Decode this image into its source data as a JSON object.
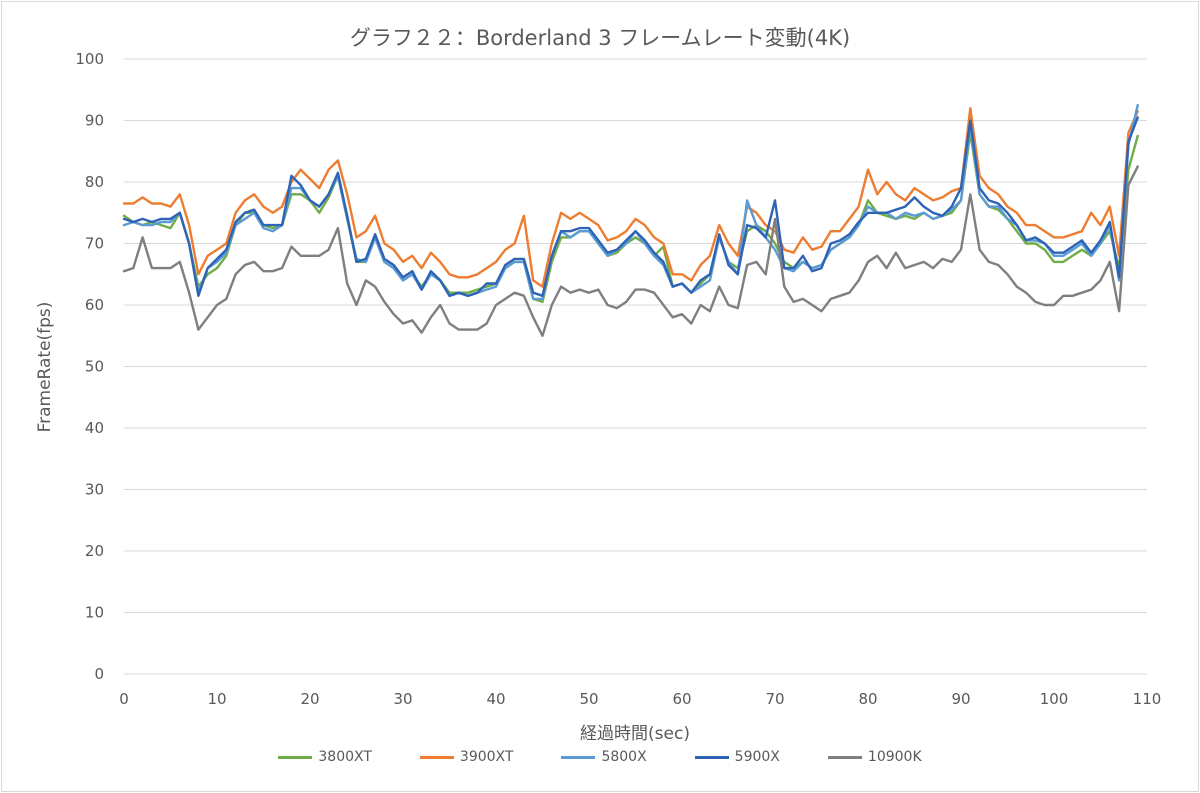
{
  "chart_data": {
    "type": "line",
    "title": "グラフ２２：Borderland 3 フレームレート変動(4K)",
    "xlabel": "経過時間(sec)",
    "ylabel": "FrameRate(fps)",
    "xlim": [
      0,
      110
    ],
    "ylim": [
      0,
      100
    ],
    "xticks": [
      0,
      10,
      20,
      30,
      40,
      50,
      60,
      70,
      80,
      90,
      100,
      110
    ],
    "yticks": [
      0,
      10,
      20,
      30,
      40,
      50,
      60,
      70,
      80,
      90,
      100
    ],
    "grid": "horizontal",
    "legend_position": "bottom",
    "x": [
      0,
      1,
      2,
      3,
      4,
      5,
      6,
      7,
      8,
      9,
      10,
      11,
      12,
      13,
      14,
      15,
      16,
      17,
      18,
      19,
      20,
      21,
      22,
      23,
      24,
      25,
      26,
      27,
      28,
      29,
      30,
      31,
      32,
      33,
      34,
      35,
      36,
      37,
      38,
      39,
      40,
      41,
      42,
      43,
      44,
      45,
      46,
      47,
      48,
      49,
      50,
      51,
      52,
      53,
      54,
      55,
      56,
      57,
      58,
      59,
      60,
      61,
      62,
      63,
      64,
      65,
      66,
      67,
      68,
      69,
      70,
      71,
      72,
      73,
      74,
      75,
      76,
      77,
      78,
      79,
      80,
      81,
      82,
      83,
      84,
      85,
      86,
      87,
      88,
      89,
      90,
      91,
      92,
      93,
      94,
      95,
      96,
      97,
      98,
      99,
      100,
      101,
      102,
      103,
      104,
      105,
      106,
      107,
      108,
      109
    ],
    "series": [
      {
        "name": "3800XT",
        "color": "#70ad47",
        "values": [
          74.5,
          73.5,
          73.0,
          73.5,
          73.0,
          72.5,
          75.0,
          70.0,
          63.0,
          65.0,
          66.0,
          68.0,
          73.0,
          75.0,
          75.0,
          73.0,
          72.5,
          73.0,
          78.0,
          78.0,
          77.0,
          75.0,
          77.5,
          81.0,
          74.0,
          67.0,
          67.0,
          71.0,
          67.0,
          66.0,
          64.0,
          65.0,
          63.0,
          65.0,
          64.0,
          62.0,
          62.0,
          62.0,
          62.5,
          63.0,
          63.5,
          66.0,
          67.0,
          67.0,
          61.0,
          60.5,
          67.0,
          71.0,
          71.0,
          72.0,
          72.0,
          70.0,
          68.0,
          68.5,
          70.0,
          71.0,
          70.0,
          68.0,
          69.5,
          63.0,
          63.5,
          62.0,
          63.5,
          65.0,
          71.0,
          67.0,
          66.0,
          72.0,
          73.0,
          72.0,
          70.0,
          67.0,
          66.0,
          67.0,
          66.0,
          66.5,
          69.0,
          70.0,
          71.0,
          73.0,
          77.0,
          75.0,
          74.5,
          74.0,
          74.5,
          74.0,
          75.0,
          74.0,
          74.5,
          75.0,
          77.0,
          88.0,
          78.0,
          76.0,
          75.5,
          74.0,
          72.0,
          70.0,
          70.0,
          69.0,
          67.0,
          67.0,
          68.0,
          69.0,
          68.0,
          70.0,
          72.0,
          66.0,
          82.0,
          87.5
        ]
      },
      {
        "name": "3900XT",
        "color": "#ed7d31",
        "values": [
          76.5,
          76.5,
          77.5,
          76.5,
          76.5,
          76.0,
          78.0,
          73.0,
          65.0,
          68.0,
          69.0,
          70.0,
          75.0,
          77.0,
          78.0,
          76.0,
          75.0,
          76.0,
          80.0,
          82.0,
          80.5,
          79.0,
          82.0,
          83.5,
          78.0,
          71.0,
          72.0,
          74.5,
          70.0,
          69.0,
          67.0,
          68.0,
          66.0,
          68.5,
          67.0,
          65.0,
          64.5,
          64.5,
          65.0,
          66.0,
          67.0,
          69.0,
          70.0,
          74.5,
          64.0,
          63.0,
          70.0,
          75.0,
          74.0,
          75.0,
          74.0,
          73.0,
          70.5,
          71.0,
          72.0,
          74.0,
          73.0,
          71.0,
          70.0,
          65.0,
          65.0,
          64.0,
          66.5,
          68.0,
          73.0,
          70.0,
          68.0,
          76.0,
          75.0,
          73.0,
          72.0,
          69.0,
          68.5,
          71.0,
          69.0,
          69.5,
          72.0,
          72.0,
          74.0,
          76.0,
          82.0,
          78.0,
          80.0,
          78.0,
          77.0,
          79.0,
          78.0,
          77.0,
          77.5,
          78.5,
          79.0,
          92.0,
          81.0,
          79.0,
          78.0,
          76.0,
          75.0,
          73.0,
          73.0,
          72.0,
          71.0,
          71.0,
          71.5,
          72.0,
          75.0,
          73.0,
          76.0,
          68.0,
          88.0,
          91.5
        ]
      },
      {
        "name": "5800X",
        "color": "#5b9bd5",
        "values": [
          73.0,
          73.5,
          73.0,
          73.0,
          73.5,
          73.5,
          75.0,
          70.0,
          62.0,
          66.0,
          67.0,
          68.5,
          73.0,
          74.0,
          75.0,
          72.5,
          72.0,
          73.0,
          79.0,
          79.0,
          77.0,
          76.0,
          78.0,
          81.0,
          74.0,
          67.5,
          67.0,
          71.0,
          67.0,
          66.0,
          64.0,
          65.0,
          62.5,
          65.0,
          64.0,
          61.5,
          62.0,
          61.5,
          62.0,
          62.5,
          63.0,
          66.0,
          67.0,
          67.0,
          61.0,
          61.0,
          68.0,
          72.0,
          71.0,
          72.0,
          72.0,
          70.0,
          68.0,
          69.0,
          70.0,
          72.0,
          70.0,
          68.0,
          66.5,
          63.0,
          63.5,
          62.0,
          63.0,
          64.0,
          71.0,
          67.0,
          65.0,
          77.0,
          73.0,
          71.0,
          69.0,
          66.0,
          65.5,
          67.0,
          66.0,
          66.5,
          69.0,
          70.0,
          71.0,
          73.0,
          76.0,
          75.0,
          75.0,
          74.0,
          75.0,
          74.5,
          75.0,
          74.0,
          74.5,
          75.5,
          77.0,
          89.0,
          78.0,
          76.0,
          76.0,
          74.0,
          73.0,
          70.5,
          70.5,
          70.0,
          68.0,
          68.0,
          69.0,
          70.0,
          68.0,
          70.0,
          73.0,
          64.0,
          86.0,
          92.5
        ]
      },
      {
        "name": "5900X",
        "color": "#2e63b6",
        "values": [
          74.0,
          73.5,
          74.0,
          73.5,
          74.0,
          74.0,
          75.0,
          70.0,
          61.5,
          66.0,
          67.5,
          69.0,
          73.5,
          75.0,
          75.5,
          73.0,
          73.0,
          73.0,
          81.0,
          79.5,
          77.0,
          76.0,
          78.0,
          81.5,
          74.5,
          67.0,
          67.5,
          71.5,
          67.5,
          66.5,
          64.5,
          65.5,
          62.5,
          65.5,
          64.0,
          61.5,
          62.0,
          61.5,
          62.0,
          63.5,
          63.5,
          66.5,
          67.5,
          67.5,
          62.0,
          61.5,
          68.0,
          72.0,
          72.0,
          72.5,
          72.5,
          70.5,
          68.5,
          69.0,
          70.5,
          72.0,
          70.5,
          68.5,
          67.0,
          63.0,
          63.5,
          62.0,
          64.0,
          65.0,
          71.5,
          66.5,
          65.0,
          73.0,
          72.5,
          71.0,
          77.0,
          66.0,
          66.0,
          68.0,
          65.5,
          66.0,
          70.0,
          70.5,
          71.5,
          73.5,
          75.0,
          75.0,
          75.0,
          75.5,
          76.0,
          77.5,
          76.0,
          75.0,
          74.5,
          76.0,
          79.0,
          90.0,
          79.0,
          77.0,
          76.5,
          75.0,
          73.0,
          70.5,
          71.0,
          70.0,
          68.5,
          68.5,
          69.5,
          70.5,
          68.5,
          70.5,
          73.5,
          64.5,
          86.5,
          90.5
        ]
      },
      {
        "name": "10900K",
        "color": "#7f7f7f",
        "values": [
          65.5,
          66.0,
          71.0,
          66.0,
          66.0,
          66.0,
          67.0,
          62.0,
          56.0,
          58.0,
          60.0,
          61.0,
          65.0,
          66.5,
          67.0,
          65.5,
          65.5,
          66.0,
          69.5,
          68.0,
          68.0,
          68.0,
          69.0,
          72.5,
          63.5,
          60.0,
          64.0,
          63.0,
          60.5,
          58.5,
          57.0,
          57.5,
          55.5,
          58.0,
          60.0,
          57.0,
          56.0,
          56.0,
          56.0,
          57.0,
          60.0,
          61.0,
          62.0,
          61.5,
          58.0,
          55.0,
          60.0,
          63.0,
          62.0,
          62.5,
          62.0,
          62.5,
          60.0,
          59.5,
          60.5,
          62.5,
          62.5,
          62.0,
          60.0,
          58.0,
          58.5,
          57.0,
          60.0,
          59.0,
          63.0,
          60.0,
          59.5,
          66.5,
          67.0,
          65.0,
          74.0,
          63.0,
          60.5,
          61.0,
          60.0,
          59.0,
          61.0,
          61.5,
          62.0,
          64.0,
          67.0,
          68.0,
          66.0,
          68.5,
          66.0,
          66.5,
          67.0,
          66.0,
          67.5,
          67.0,
          69.0,
          78.0,
          69.0,
          67.0,
          66.5,
          65.0,
          63.0,
          62.0,
          60.5,
          60.0,
          60.0,
          61.5,
          61.5,
          62.0,
          62.5,
          64.0,
          67.0,
          59.0,
          79.5,
          82.5
        ]
      }
    ]
  }
}
